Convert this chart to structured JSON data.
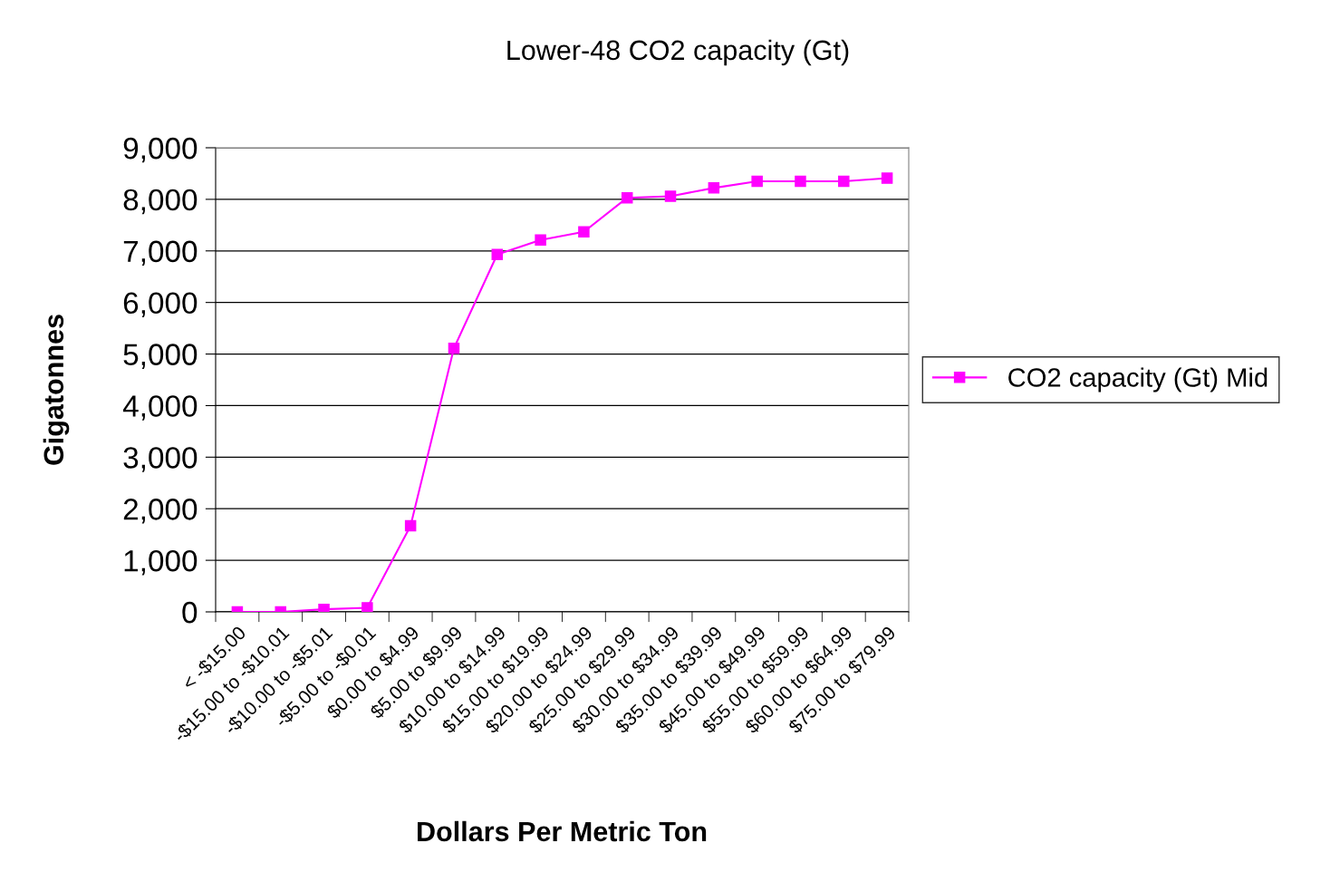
{
  "chart_data": {
    "type": "line",
    "title": "Lower-48 CO2 capacity (Gt)",
    "xlabel": "Dollars Per Metric Ton",
    "ylabel": "Gigatonnes",
    "categories": [
      "< -$15.00",
      "-$15.00 to -$10.01",
      "-$10.00 to -$5.01",
      "-$5.00 to -$0.01",
      "$0.00 to $4.99",
      "$5.00 to $9.99",
      "$10.00 to $14.99",
      "$15.00 to $19.99",
      "$20.00 to $24.99",
      "$25.00 to $29.99",
      "$30.00 to $34.99",
      "$35.00 to $39.99",
      "$45.00 to $49.99",
      "$55.00 to $59.99",
      "$60.00 to $64.99",
      "$75.00 to $79.99"
    ],
    "series": [
      {
        "name": "CO2 capacity (Gt) Mid",
        "color": "#ff00ff",
        "values": [
          0,
          0,
          50,
          80,
          1670,
          5110,
          6930,
          7210,
          7370,
          8030,
          8060,
          8220,
          8350,
          8350,
          8350,
          8410
        ]
      }
    ],
    "ylim": [
      0,
      9000
    ],
    "yticks": [
      {
        "value": 0,
        "label": "0"
      },
      {
        "value": 1000,
        "label": "1,000"
      },
      {
        "value": 2000,
        "label": "2,000"
      },
      {
        "value": 3000,
        "label": "3,000"
      },
      {
        "value": 4000,
        "label": "4,000"
      },
      {
        "value": 5000,
        "label": "5,000"
      },
      {
        "value": 6000,
        "label": "6,000"
      },
      {
        "value": 7000,
        "label": "7,000"
      },
      {
        "value": 8000,
        "label": "8,000"
      },
      {
        "value": 9000,
        "label": "9,000"
      }
    ],
    "grid": "y",
    "legend": "right",
    "marker": "square",
    "line_style": "solid"
  }
}
